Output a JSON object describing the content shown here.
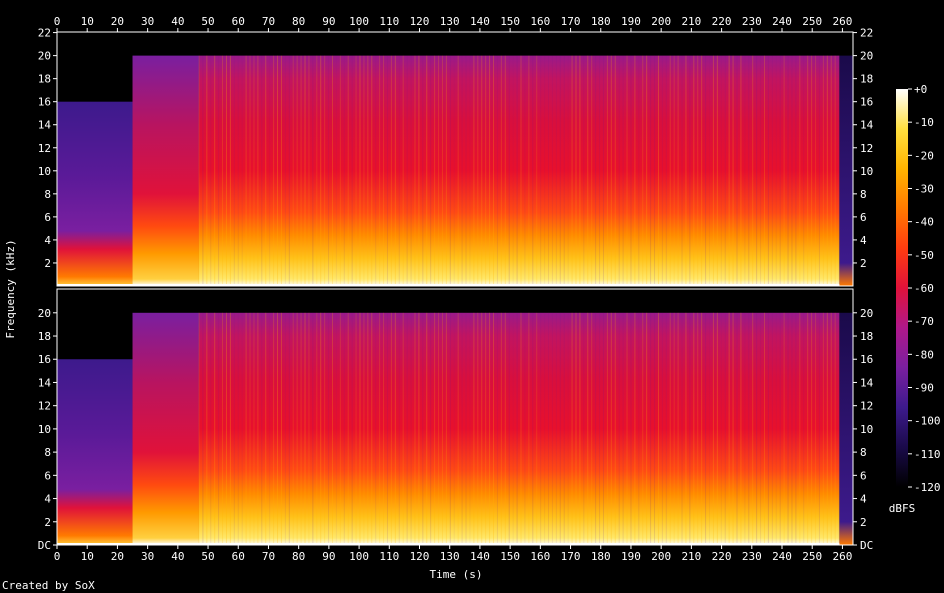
{
  "chart_data": {
    "type": "heatmap",
    "title": "",
    "xlabel": "Time (s)",
    "ylabel": "Frequency (kHz)",
    "x_ticks": [
      0,
      10,
      20,
      30,
      40,
      50,
      60,
      70,
      80,
      90,
      100,
      110,
      120,
      130,
      140,
      150,
      160,
      170,
      180,
      190,
      200,
      210,
      220,
      230,
      240,
      250,
      260
    ],
    "x_tick_labels": [
      "0",
      "10",
      "20",
      "30",
      "40",
      "50",
      "60",
      "70",
      "80",
      "90",
      "100",
      "110",
      "120",
      "130",
      "140",
      "150",
      "160",
      "170",
      "180",
      "190",
      "200",
      "210",
      "220",
      "230",
      "240",
      "250",
      "260"
    ],
    "xlim": [
      0,
      263.5
    ],
    "ylim_khz": [
      0,
      22.05
    ],
    "y_ticks_top": [
      "2",
      "4",
      "6",
      "8",
      "10",
      "12",
      "14",
      "16",
      "18",
      "20",
      "22"
    ],
    "y_ticks_bottom": [
      "DC",
      "2",
      "4",
      "6",
      "8",
      "10",
      "12",
      "14",
      "16",
      "18",
      "20"
    ],
    "y_tick_values_top": [
      2,
      4,
      6,
      8,
      10,
      12,
      14,
      16,
      18,
      20,
      22
    ],
    "y_tick_values_bottom": [
      0,
      2,
      4,
      6,
      8,
      10,
      12,
      14,
      16,
      18,
      20
    ],
    "channels": [
      "left",
      "right"
    ],
    "colorbar": {
      "label": "dBFS",
      "range": [
        -120,
        0
      ],
      "ticks": [
        "+0",
        "-10",
        "-20",
        "-30",
        "-40",
        "-50",
        "-60",
        "-70",
        "-80",
        "-90",
        "-100",
        "-110",
        "-120"
      ],
      "tick_values": [
        0,
        -10,
        -20,
        -30,
        -40,
        -50,
        -60,
        -70,
        -80,
        -90,
        -100,
        -110,
        -120
      ],
      "colors": [
        "#000000",
        "#1a0a4a",
        "#3d1a8c",
        "#7a1fa0",
        "#b0188a",
        "#e0123a",
        "#ff3c10",
        "#ff7a00",
        "#ffb400",
        "#ffe040",
        "#ffffff"
      ]
    },
    "segments": [
      {
        "t_start": 0,
        "t_end": 25,
        "cutoff_khz": 16,
        "level_dbfs": -95
      },
      {
        "t_start": 25,
        "t_end": 47,
        "cutoff_khz": 20,
        "level_dbfs": -60
      },
      {
        "t_start": 47,
        "t_end": 259,
        "cutoff_khz": 20,
        "level_dbfs": -55
      },
      {
        "t_start": 259,
        "t_end": 263.5,
        "cutoff_khz": 20,
        "level_dbfs": -110
      }
    ]
  },
  "footer": {
    "credit": "Created by SoX"
  }
}
